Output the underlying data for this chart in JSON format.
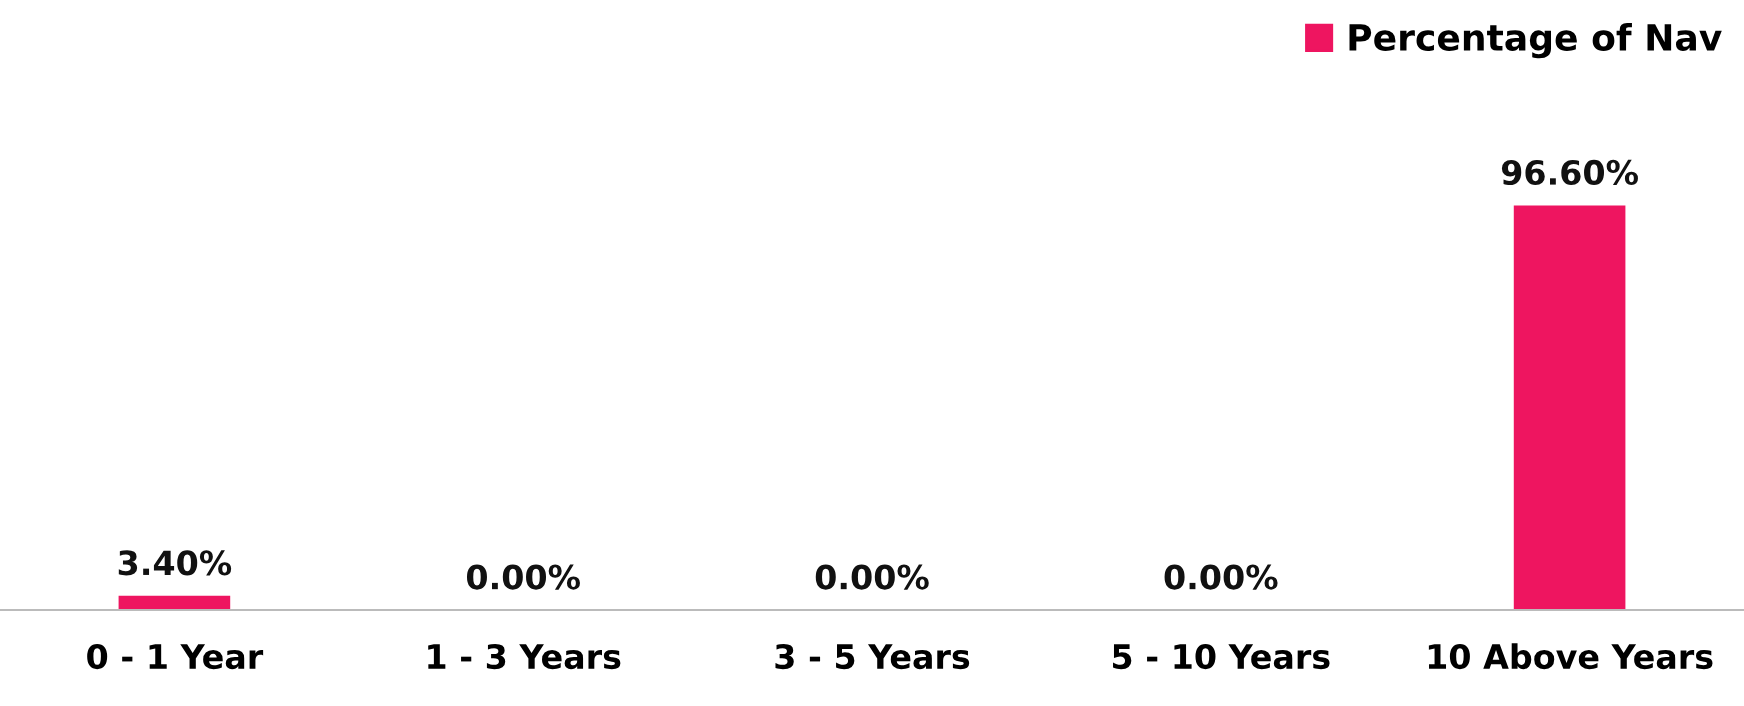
{
  "chart_data": {
    "type": "bar",
    "categories": [
      "0 - 1 Year",
      "1 - 3 Years",
      "3 - 5 Years",
      "5 - 10 Years",
      "10 Above Years"
    ],
    "series": [
      {
        "name": "Percentage of Nav",
        "color": "#ee1560",
        "values": [
          3.4,
          0,
          0,
          0,
          96.6
        ],
        "value_labels": [
          "3.40%",
          "0.00%",
          "0.00%",
          "0.00%",
          "96.60%"
        ]
      }
    ],
    "relative": false,
    "legend": "top right",
    "grid": false
  }
}
